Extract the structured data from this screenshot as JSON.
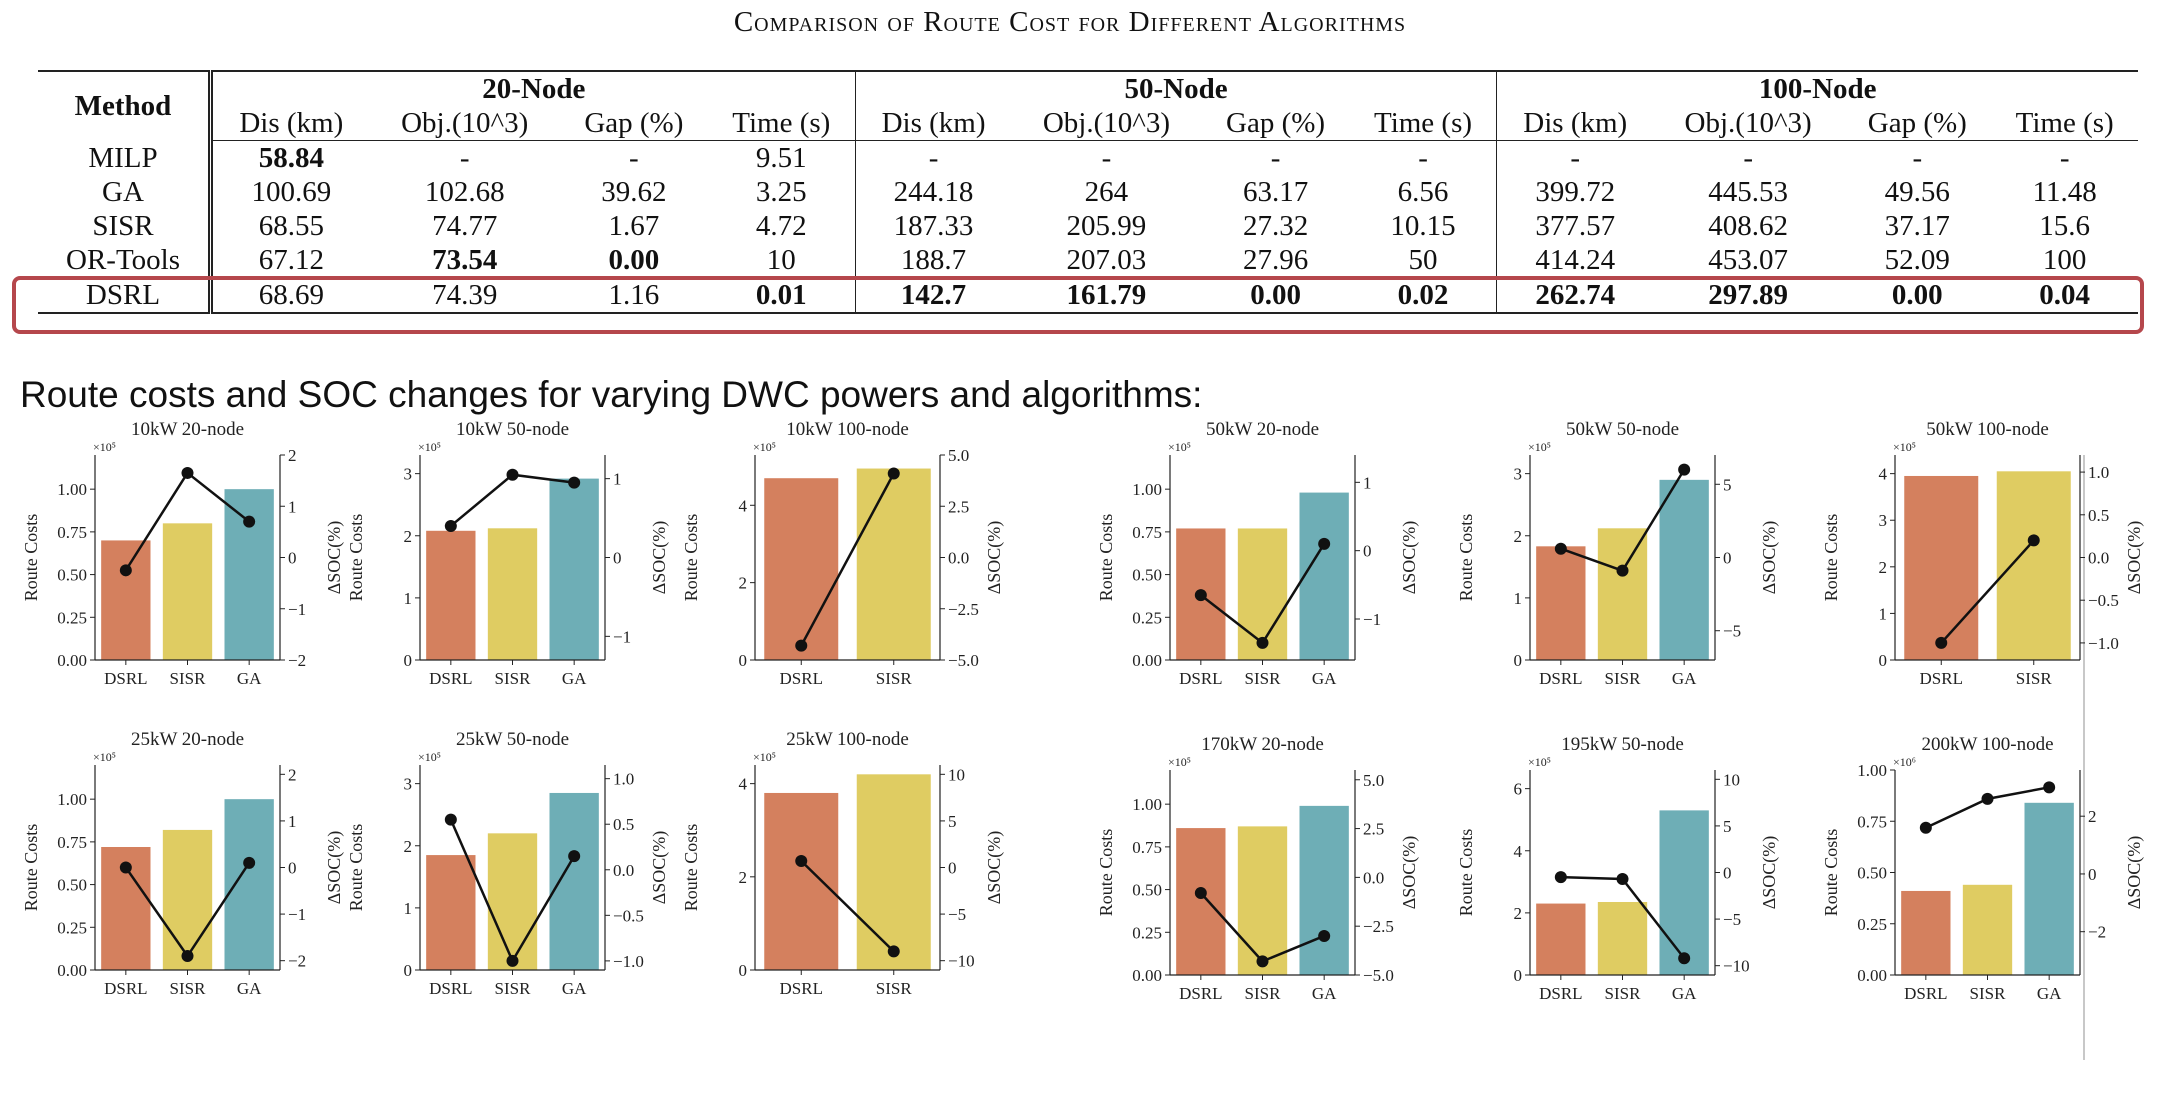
{
  "table": {
    "title": "Comparison of Route Cost for Different Algorithms",
    "method_header": "Method",
    "groups": [
      "20-Node",
      "50-Node",
      "100-Node"
    ],
    "subheaders": [
      "Dis (km)",
      "Obj.(10^3)",
      "Gap (%)",
      "Time (s)"
    ],
    "rows": [
      {
        "method": "MILP",
        "cells": [
          "58.84",
          "-",
          "-",
          "9.51",
          "-",
          "-",
          "-",
          "-",
          "-",
          "-",
          "-",
          "-"
        ],
        "bold": [
          0
        ]
      },
      {
        "method": "GA",
        "cells": [
          "100.69",
          "102.68",
          "39.62",
          "3.25",
          "244.18",
          "264",
          "63.17",
          "6.56",
          "399.72",
          "445.53",
          "49.56",
          "11.48"
        ],
        "bold": []
      },
      {
        "method": "SISR",
        "cells": [
          "68.55",
          "74.77",
          "1.67",
          "4.72",
          "187.33",
          "205.99",
          "27.32",
          "10.15",
          "377.57",
          "408.62",
          "37.17",
          "15.6"
        ],
        "bold": []
      },
      {
        "method": "OR-Tools",
        "cells": [
          "67.12",
          "73.54",
          "0.00",
          "10",
          "188.7",
          "207.03",
          "27.96",
          "50",
          "414.24",
          "453.07",
          "52.09",
          "100"
        ],
        "bold": [
          1,
          2
        ]
      },
      {
        "method": "DSRL",
        "cells": [
          "68.69",
          "74.39",
          "1.16",
          "0.01",
          "142.7",
          "161.79",
          "0.00",
          "0.02",
          "262.74",
          "297.89",
          "0.00",
          "0.04"
        ],
        "bold": [
          3,
          4,
          5,
          6,
          7,
          8,
          9,
          10,
          11
        ]
      }
    ],
    "highlight_color": "#b5474c"
  },
  "section_heading": "Route costs and SOC changes for varying DWC powers and algorithms:",
  "colors": {
    "DSRL": "#d4805e",
    "SISR": "#dfcc62",
    "GA": "#6eaeb6",
    "line": "#111111"
  },
  "chart_data": [
    {
      "type": "bar",
      "title": "10kW 20-node",
      "categories": [
        "DSRL",
        "SISR",
        "GA"
      ],
      "values": [
        0.7,
        0.8,
        1.0
      ],
      "soc": [
        -0.25,
        1.65,
        0.7
      ],
      "ylim": [
        0,
        1.2
      ],
      "yticks": [
        "0.00",
        "0.25",
        "0.50",
        "0.75",
        "1.00"
      ],
      "ytick_vals": [
        0,
        0.25,
        0.5,
        0.75,
        1.0
      ],
      "soc_ylim": [
        -2,
        2
      ],
      "soc_ticks": [
        "−2",
        "−1",
        "0",
        "1",
        "2"
      ],
      "soc_tick_vals": [
        -2,
        -1,
        0,
        1,
        2
      ],
      "exponent": "×10⁵",
      "ylabel": "Route Costs",
      "ylabel2": "ΔSOC(%)"
    },
    {
      "type": "bar",
      "title": "10kW 50-node",
      "categories": [
        "DSRL",
        "SISR",
        "GA"
      ],
      "values": [
        2.08,
        2.12,
        2.92
      ],
      "soc": [
        0.4,
        1.05,
        0.95
      ],
      "ylim": [
        0,
        3.3
      ],
      "yticks": [
        "0",
        "1",
        "2",
        "3"
      ],
      "ytick_vals": [
        0,
        1,
        2,
        3
      ],
      "soc_ylim": [
        -1.3,
        1.3
      ],
      "soc_ticks": [
        "−1",
        "0",
        "1"
      ],
      "soc_tick_vals": [
        -1,
        0,
        1
      ],
      "exponent": "×10⁵",
      "ylabel": "Route Costs",
      "ylabel2": "ΔSOC(%)"
    },
    {
      "type": "bar",
      "title": "10kW 100-node",
      "categories": [
        "DSRL",
        "SISR"
      ],
      "values": [
        4.7,
        4.95
      ],
      "soc": [
        -4.3,
        4.1
      ],
      "ylim": [
        0,
        5.3
      ],
      "yticks": [
        "0",
        "2",
        "4"
      ],
      "ytick_vals": [
        0,
        2,
        4
      ],
      "soc_ylim": [
        -5,
        5
      ],
      "soc_ticks": [
        "−5.0",
        "−2.5",
        "0.0",
        "2.5",
        "5.0"
      ],
      "soc_tick_vals": [
        -5,
        -2.5,
        0,
        2.5,
        5
      ],
      "exponent": "×10⁵",
      "ylabel": "Route Costs",
      "ylabel2": "ΔSOC(%)"
    },
    {
      "type": "bar",
      "title": "50kW 20-node",
      "categories": [
        "DSRL",
        "SISR",
        "GA"
      ],
      "values": [
        0.77,
        0.77,
        0.98
      ],
      "soc": [
        -0.65,
        -1.35,
        0.1
      ],
      "ylim": [
        0,
        1.2
      ],
      "yticks": [
        "0.00",
        "0.25",
        "0.50",
        "0.75",
        "1.00"
      ],
      "ytick_vals": [
        0,
        0.25,
        0.5,
        0.75,
        1.0
      ],
      "soc_ylim": [
        -1.6,
        1.4
      ],
      "soc_ticks": [
        "−1",
        "0",
        "1"
      ],
      "soc_tick_vals": [
        -1,
        0,
        1
      ],
      "exponent": "×10⁵",
      "ylabel": "Route Costs",
      "ylabel2": "ΔSOC(%)"
    },
    {
      "type": "bar",
      "title": "50kW 50-node",
      "categories": [
        "DSRL",
        "SISR",
        "GA"
      ],
      "values": [
        1.83,
        2.12,
        2.9
      ],
      "soc": [
        0.6,
        -0.9,
        6.0
      ],
      "ylim": [
        0,
        3.3
      ],
      "yticks": [
        "0",
        "1",
        "2",
        "3"
      ],
      "ytick_vals": [
        0,
        1,
        2,
        3
      ],
      "soc_ylim": [
        -7,
        7
      ],
      "soc_ticks": [
        "−5",
        "0",
        "5"
      ],
      "soc_tick_vals": [
        -5,
        0,
        5
      ],
      "exponent": "×10⁵",
      "ylabel": "Route Costs",
      "ylabel2": "ΔSOC(%)"
    },
    {
      "type": "bar",
      "title": "50kW 100-node",
      "categories": [
        "DSRL",
        "SISR"
      ],
      "values": [
        3.95,
        4.05
      ],
      "soc": [
        -1.0,
        0.2
      ],
      "ylim": [
        0,
        4.4
      ],
      "yticks": [
        "0",
        "1",
        "2",
        "3",
        "4"
      ],
      "ytick_vals": [
        0,
        1,
        2,
        3,
        4
      ],
      "soc_ylim": [
        -1.2,
        1.2
      ],
      "soc_ticks": [
        "−1.0",
        "−0.5",
        "0.0",
        "0.5",
        "1.0"
      ],
      "soc_tick_vals": [
        -1,
        -0.5,
        0,
        0.5,
        1
      ],
      "exponent": "×10⁵",
      "ylabel": "Route Costs",
      "ylabel2": "ΔSOC(%)"
    },
    {
      "type": "bar",
      "title": "25kW 20-node",
      "categories": [
        "DSRL",
        "SISR",
        "GA"
      ],
      "values": [
        0.72,
        0.82,
        1.0
      ],
      "soc": [
        0.0,
        -1.9,
        0.1
      ],
      "ylim": [
        0,
        1.2
      ],
      "yticks": [
        "0.00",
        "0.25",
        "0.50",
        "0.75",
        "1.00"
      ],
      "ytick_vals": [
        0,
        0.25,
        0.5,
        0.75,
        1.0
      ],
      "soc_ylim": [
        -2.2,
        2.2
      ],
      "soc_ticks": [
        "−2",
        "−1",
        "0",
        "1",
        "2"
      ],
      "soc_tick_vals": [
        -2,
        -1,
        0,
        1,
        2
      ],
      "exponent": "×10⁵",
      "ylabel": "Route Costs",
      "ylabel2": "ΔSOC(%)"
    },
    {
      "type": "bar",
      "title": "25kW 50-node",
      "categories": [
        "DSRL",
        "SISR",
        "GA"
      ],
      "values": [
        1.85,
        2.2,
        2.85
      ],
      "soc": [
        0.55,
        -1.0,
        0.15
      ],
      "ylim": [
        0,
        3.3
      ],
      "yticks": [
        "0",
        "1",
        "2",
        "3"
      ],
      "ytick_vals": [
        0,
        1,
        2,
        3
      ],
      "soc_ylim": [
        -1.1,
        1.15
      ],
      "soc_ticks": [
        "−1.0",
        "−0.5",
        "0.0",
        "0.5",
        "1.0"
      ],
      "soc_tick_vals": [
        -1,
        -0.5,
        0,
        0.5,
        1
      ],
      "exponent": "×10⁵",
      "ylabel": "Route Costs",
      "ylabel2": "ΔSOC(%)"
    },
    {
      "type": "bar",
      "title": "25kW 100-node",
      "categories": [
        "DSRL",
        "SISR"
      ],
      "values": [
        3.8,
        4.2
      ],
      "soc": [
        0.7,
        -9.0
      ],
      "ylim": [
        0,
        4.4
      ],
      "yticks": [
        "0",
        "2",
        "4"
      ],
      "ytick_vals": [
        0,
        2,
        4
      ],
      "soc_ylim": [
        -11,
        11
      ],
      "soc_ticks": [
        "−10",
        "−5",
        "0",
        "5",
        "10"
      ],
      "soc_tick_vals": [
        -10,
        -5,
        0,
        5,
        10
      ],
      "exponent": "×10⁵",
      "ylabel": "Route Costs",
      "ylabel2": "ΔSOC(%)"
    },
    {
      "type": "bar",
      "title": "170kW 20-node",
      "categories": [
        "DSRL",
        "SISR",
        "GA"
      ],
      "values": [
        0.86,
        0.87,
        0.99
      ],
      "soc": [
        -0.8,
        -4.3,
        -3.0
      ],
      "ylim": [
        0,
        1.2
      ],
      "yticks": [
        "0.00",
        "0.25",
        "0.50",
        "0.75",
        "1.00"
      ],
      "ytick_vals": [
        0,
        0.25,
        0.5,
        0.75,
        1.0
      ],
      "soc_ylim": [
        -5,
        5.5
      ],
      "soc_ticks": [
        "−5.0",
        "−2.5",
        "0.0",
        "2.5",
        "5.0"
      ],
      "soc_tick_vals": [
        -5,
        -2.5,
        0,
        2.5,
        5
      ],
      "exponent": "×10⁵",
      "ylabel": "Route Costs",
      "ylabel2": "ΔSOC(%)"
    },
    {
      "type": "bar",
      "title": "195kW 50-node",
      "categories": [
        "DSRL",
        "SISR",
        "GA"
      ],
      "values": [
        2.3,
        2.35,
        5.3
      ],
      "soc": [
        -0.5,
        -0.7,
        -9.2
      ],
      "ylim": [
        0,
        6.6
      ],
      "yticks": [
        "0",
        "2",
        "4",
        "6"
      ],
      "ytick_vals": [
        0,
        2,
        4,
        6
      ],
      "soc_ylim": [
        -11,
        11
      ],
      "soc_ticks": [
        "−10",
        "−5",
        "0",
        "5",
        "10"
      ],
      "soc_tick_vals": [
        -10,
        -5,
        0,
        5,
        10
      ],
      "exponent": "×10⁵",
      "ylabel": "Route Costs",
      "ylabel2": "ΔSOC(%)"
    },
    {
      "type": "bar",
      "title": "200kW 100-node",
      "categories": [
        "DSRL",
        "SISR",
        "GA"
      ],
      "values": [
        0.41,
        0.44,
        0.84
      ],
      "soc": [
        1.6,
        2.6,
        3.0
      ],
      "ylim": [
        0,
        1.0
      ],
      "yticks": [
        "0.00",
        "0.25",
        "0.50",
        "0.75",
        "1.00"
      ],
      "ytick_vals": [
        0,
        0.25,
        0.5,
        0.75,
        1.0
      ],
      "soc_ylim": [
        -3.5,
        3.6
      ],
      "soc_ticks": [
        "−2",
        "0",
        "2"
      ],
      "soc_tick_vals": [
        -2,
        0,
        2
      ],
      "exponent": "×10⁶",
      "ylabel": "Route Costs",
      "ylabel2": "ΔSOC(%)"
    }
  ]
}
